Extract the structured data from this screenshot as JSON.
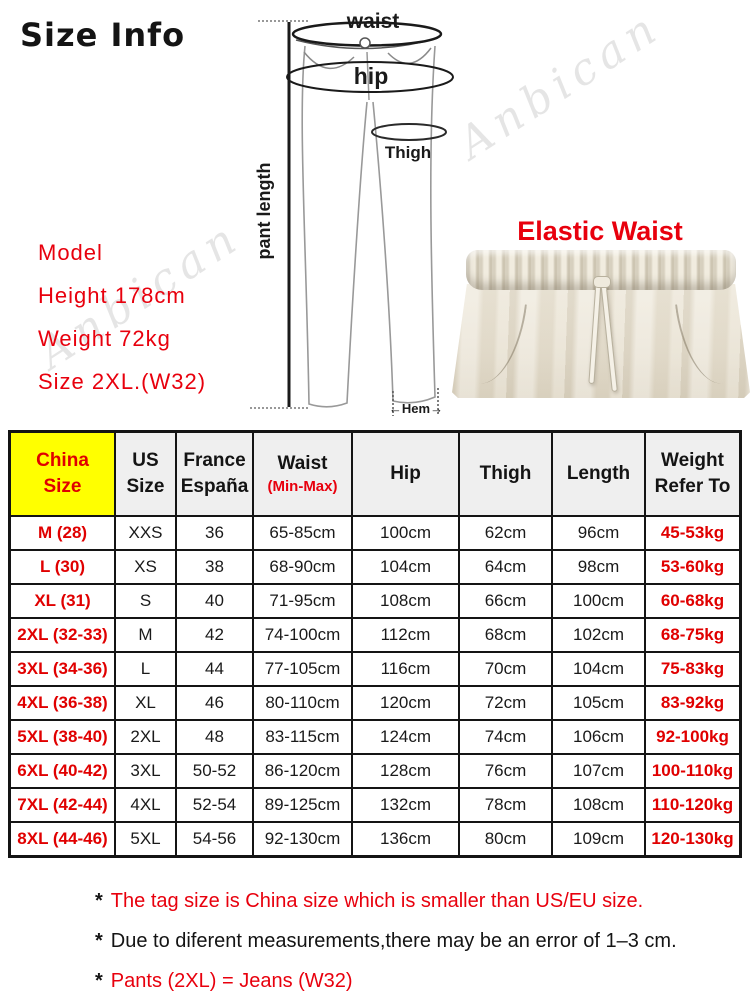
{
  "page": {
    "title": "Size Info",
    "watermark": "Anbican"
  },
  "diagram": {
    "waist_label": "waist",
    "hip_label": "hip",
    "thigh_label": "Thigh",
    "pant_length_label": "pant length",
    "hem_label": "←Hem→"
  },
  "model_info": {
    "lines": [
      "Model",
      "Height 178cm",
      "Weight 72kg",
      "Size 2XL.(W32)"
    ]
  },
  "elastic_waist": {
    "label": "Elastic Waist"
  },
  "size_table": {
    "headers": [
      {
        "line1": "China",
        "line2": "Size"
      },
      {
        "line1": "US",
        "line2": "Size"
      },
      {
        "line1": "France",
        "line2": "España"
      },
      {
        "line1": "Waist",
        "line2": "(Min-Max)"
      },
      {
        "line1": "Hip"
      },
      {
        "line1": "Thigh"
      },
      {
        "line1": "Length"
      },
      {
        "line1": "Weight",
        "line2": "Refer To"
      }
    ],
    "rows": [
      [
        "M (28)",
        "XXS",
        "36",
        "65-85cm",
        "100cm",
        "62cm",
        "96cm",
        "45-53kg"
      ],
      [
        "L (30)",
        "XS",
        "38",
        "68-90cm",
        "104cm",
        "64cm",
        "98cm",
        "53-60kg"
      ],
      [
        "XL (31)",
        "S",
        "40",
        "71-95cm",
        "108cm",
        "66cm",
        "100cm",
        "60-68kg"
      ],
      [
        "2XL (32-33)",
        "M",
        "42",
        "74-100cm",
        "112cm",
        "68cm",
        "102cm",
        "68-75kg"
      ],
      [
        "3XL (34-36)",
        "L",
        "44",
        "77-105cm",
        "116cm",
        "70cm",
        "104cm",
        "75-83kg"
      ],
      [
        "4XL (36-38)",
        "XL",
        "46",
        "80-110cm",
        "120cm",
        "72cm",
        "105cm",
        "83-92kg"
      ],
      [
        "5XL (38-40)",
        "2XL",
        "48",
        "83-115cm",
        "124cm",
        "74cm",
        "106cm",
        "92-100kg"
      ],
      [
        "6XL (40-42)",
        "3XL",
        "50-52",
        "86-120cm",
        "128cm",
        "76cm",
        "107cm",
        "100-110kg"
      ],
      [
        "7XL (42-44)",
        "4XL",
        "52-54",
        "89-125cm",
        "132cm",
        "78cm",
        "108cm",
        "110-120kg"
      ],
      [
        "8XL (44-46)",
        "5XL",
        "54-56",
        "92-130cm",
        "136cm",
        "80cm",
        "109cm",
        "120-130kg"
      ]
    ]
  },
  "notes": [
    {
      "prefix": "*",
      "text": "The tag size is China size which is smaller than US/EU size.",
      "style": "red"
    },
    {
      "prefix": "*",
      "text": "Due to diferent measurements,there may be an error of 1–3 cm.",
      "style": "dark"
    },
    {
      "prefix": "*",
      "text": "Pants (2XL) = Jeans (W32)",
      "style": "red"
    }
  ],
  "colors": {
    "accent_red": "#e8000d",
    "table_red": "#e00000",
    "highlight_yellow": "#ffff00",
    "header_gray": "#efefef",
    "photo_beige": "#e7e0d0"
  }
}
